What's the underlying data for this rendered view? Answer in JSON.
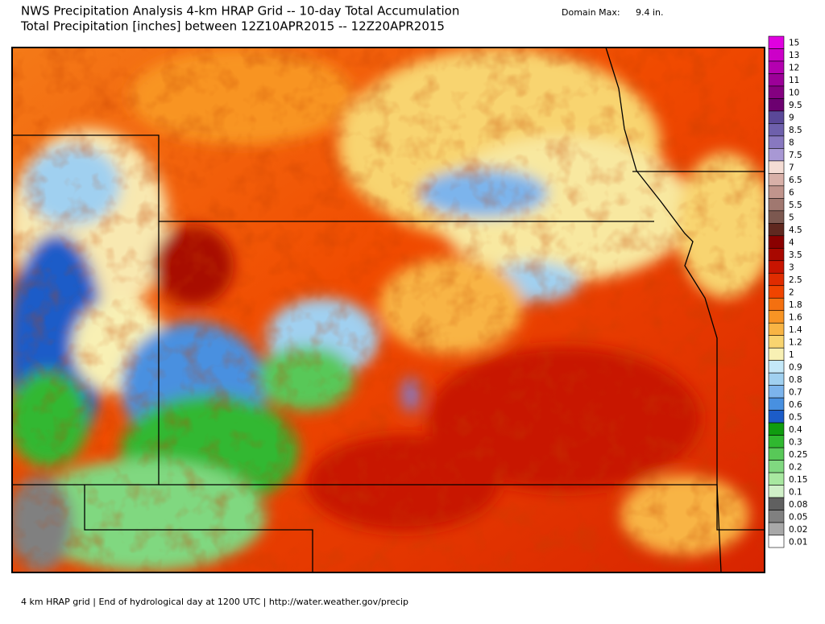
{
  "header": {
    "title": "NWS Precipitation Analysis 4-km HRAP Grid -- 10-day Total Accumulation",
    "subtitle": "Total Precipitation [inches] between 12Z10APR2015 -- 12Z20APR2015",
    "domain_max_label": "Domain Max:",
    "domain_max_value": "9.4 in."
  },
  "legend": {
    "items": [
      {
        "label": "15",
        "color": "#e000e0"
      },
      {
        "label": "13",
        "color": "#cc00c8"
      },
      {
        "label": "12",
        "color": "#b400b0"
      },
      {
        "label": "11",
        "color": "#9c0098"
      },
      {
        "label": "10",
        "color": "#840080"
      },
      {
        "label": "9.5",
        "color": "#6c0070"
      },
      {
        "label": "9",
        "color": "#5a4898"
      },
      {
        "label": "8.5",
        "color": "#6e60ac"
      },
      {
        "label": "8",
        "color": "#8878c0"
      },
      {
        "label": "7.5",
        "color": "#a898d4"
      },
      {
        "label": "7",
        "color": "#f4dcd4"
      },
      {
        "label": "6.5",
        "color": "#d8b0a8"
      },
      {
        "label": "6",
        "color": "#c0948c"
      },
      {
        "label": "5.5",
        "color": "#a07870"
      },
      {
        "label": "5",
        "color": "#7c5850"
      },
      {
        "label": "4.5",
        "color": "#602820"
      },
      {
        "label": "4",
        "color": "#8a0000"
      },
      {
        "label": "3.5",
        "color": "#a80800"
      },
      {
        "label": "3",
        "color": "#c81400"
      },
      {
        "label": "2.5",
        "color": "#e02c00"
      },
      {
        "label": "2",
        "color": "#f04400"
      },
      {
        "label": "1.8",
        "color": "#f47010"
      },
      {
        "label": "1.6",
        "color": "#f89424"
      },
      {
        "label": "1.4",
        "color": "#f8b444"
      },
      {
        "label": "1.2",
        "color": "#f8d470"
      },
      {
        "label": "1",
        "color": "#f8f0b4"
      },
      {
        "label": "0.9",
        "color": "#c4e8f8"
      },
      {
        "label": "0.8",
        "color": "#a0d0f0"
      },
      {
        "label": "0.7",
        "color": "#7cb4ec"
      },
      {
        "label": "0.6",
        "color": "#4890e0"
      },
      {
        "label": "0.5",
        "color": "#1c5cc8"
      },
      {
        "label": "0.4",
        "color": "#109c10"
      },
      {
        "label": "0.3",
        "color": "#30b830"
      },
      {
        "label": "0.25",
        "color": "#58c858"
      },
      {
        "label": "0.2",
        "color": "#80d880"
      },
      {
        "label": "0.15",
        "color": "#a8e8a0"
      },
      {
        "label": "0.1",
        "color": "#d0f0c8"
      },
      {
        "label": "0.08",
        "color": "#606060"
      },
      {
        "label": "0.05",
        "color": "#808080"
      },
      {
        "label": "0.02",
        "color": "#a8a8a8"
      },
      {
        "label": "0.01",
        "color": "#ffffff"
      }
    ]
  },
  "footer": "4 km HRAP grid | End of hydrological day at 1200 UTC | http://water.weather.gov/precip"
}
